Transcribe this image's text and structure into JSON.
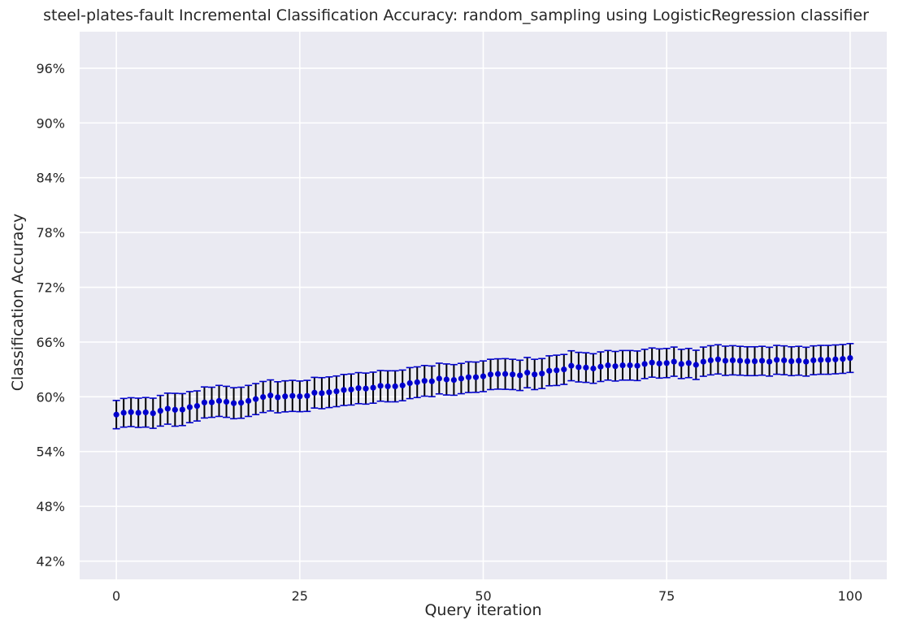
{
  "chart_data": {
    "type": "scatter",
    "title": "steel-plates-fault Incremental Classification Accuracy: random_sampling using LogisticRegression classifier",
    "xlabel": "Query iteration",
    "ylabel": "Classification Accuracy",
    "xlim": [
      -5,
      105
    ],
    "ylim": [
      0.4,
      1.0
    ],
    "xticks": [
      0,
      25,
      50,
      75,
      100
    ],
    "xtick_labels": [
      "0",
      "25",
      "50",
      "75",
      "100"
    ],
    "yticks": [
      0.42,
      0.48,
      0.54,
      0.6,
      0.66,
      0.72,
      0.78,
      0.84,
      0.9,
      0.96
    ],
    "ytick_labels": [
      "42%",
      "48%",
      "54%",
      "60%",
      "66%",
      "72%",
      "78%",
      "84%",
      "90%",
      "96%"
    ],
    "grid": true,
    "background": "#eaeaf2",
    "gridColor": "#ffffff",
    "markerColor": "#0000cd",
    "errorBarColor": "#000000",
    "capColor": "#0000cd",
    "series": [
      {
        "x": [
          0,
          1,
          2,
          3,
          4,
          5,
          6,
          7,
          8,
          9,
          10,
          11,
          12,
          13,
          14,
          15,
          16,
          17,
          18,
          19,
          20,
          21,
          22,
          23,
          24,
          25,
          26,
          27,
          28,
          29,
          30,
          31,
          32,
          33,
          34,
          35,
          36,
          37,
          38,
          39,
          40,
          41,
          42,
          43,
          44,
          45,
          46,
          47,
          48,
          49,
          50,
          51,
          52,
          53,
          54,
          55,
          56,
          57,
          58,
          59,
          60,
          61,
          62,
          63,
          64,
          65,
          66,
          67,
          68,
          69,
          70,
          71,
          72,
          73,
          74,
          75,
          76,
          77,
          78,
          79,
          80,
          81,
          82,
          83,
          84,
          85,
          86,
          87,
          88,
          89,
          90,
          91,
          92,
          93,
          94,
          95,
          96,
          97,
          98,
          99,
          100
        ],
        "y": [
          0.5805,
          0.5825,
          0.5832,
          0.5825,
          0.583,
          0.582,
          0.5847,
          0.587,
          0.5858,
          0.586,
          0.5887,
          0.59,
          0.5938,
          0.594,
          0.5955,
          0.5945,
          0.593,
          0.5935,
          0.5955,
          0.5975,
          0.5998,
          0.6015,
          0.5995,
          0.6005,
          0.601,
          0.6005,
          0.601,
          0.6045,
          0.604,
          0.605,
          0.606,
          0.6075,
          0.608,
          0.6095,
          0.609,
          0.61,
          0.612,
          0.6115,
          0.6115,
          0.6125,
          0.615,
          0.616,
          0.6175,
          0.617,
          0.62,
          0.619,
          0.6185,
          0.62,
          0.6215,
          0.6215,
          0.6225,
          0.6245,
          0.625,
          0.625,
          0.6245,
          0.6235,
          0.6265,
          0.6245,
          0.6255,
          0.6285,
          0.629,
          0.63,
          0.634,
          0.6325,
          0.632,
          0.631,
          0.633,
          0.6345,
          0.6335,
          0.6345,
          0.6345,
          0.634,
          0.636,
          0.6375,
          0.6365,
          0.637,
          0.6385,
          0.636,
          0.637,
          0.635,
          0.6385,
          0.64,
          0.641,
          0.6395,
          0.64,
          0.6395,
          0.639,
          0.639,
          0.6395,
          0.6385,
          0.6405,
          0.64,
          0.639,
          0.6395,
          0.6385,
          0.64,
          0.6405,
          0.6405,
          0.641,
          0.6415,
          0.6425
        ],
        "error": [
          0.0155,
          0.0157,
          0.0158,
          0.016,
          0.0162,
          0.0165,
          0.0168,
          0.017,
          0.018,
          0.0175,
          0.017,
          0.0165,
          0.017,
          0.0165,
          0.017,
          0.017,
          0.017,
          0.017,
          0.017,
          0.017,
          0.017,
          0.017,
          0.017,
          0.017,
          0.017,
          0.0168,
          0.017,
          0.0168,
          0.017,
          0.0168,
          0.0168,
          0.017,
          0.017,
          0.017,
          0.017,
          0.017,
          0.0168,
          0.017,
          0.017,
          0.0168,
          0.017,
          0.0168,
          0.0168,
          0.0168,
          0.0168,
          0.017,
          0.0168,
          0.0166,
          0.0168,
          0.0166,
          0.0168,
          0.0166,
          0.0166,
          0.0168,
          0.0166,
          0.0166,
          0.0166,
          0.0166,
          0.0164,
          0.0164,
          0.0166,
          0.0164,
          0.0164,
          0.0162,
          0.0162,
          0.0162,
          0.0162,
          0.0162,
          0.0162,
          0.0162,
          0.0162,
          0.0162,
          0.016,
          0.016,
          0.016,
          0.016,
          0.016,
          0.016,
          0.016,
          0.016,
          0.016,
          0.016,
          0.016,
          0.016,
          0.016,
          0.0158,
          0.0158,
          0.0158,
          0.0158,
          0.0158,
          0.0158,
          0.0158,
          0.0158,
          0.0158,
          0.0158,
          0.0158,
          0.0158,
          0.0158,
          0.0158,
          0.0158,
          0.0158
        ]
      }
    ]
  }
}
